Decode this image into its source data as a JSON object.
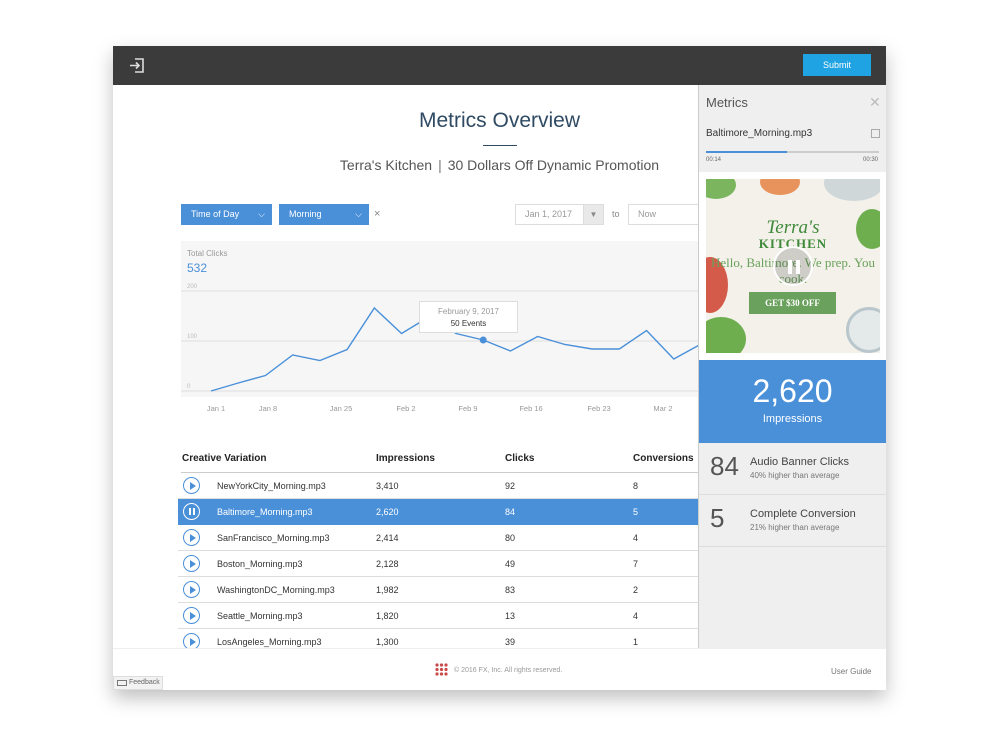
{
  "header": {
    "submit_label": "Submit"
  },
  "main": {
    "title": "Metrics Overview",
    "subtitle_brand": "Terra's Kitchen",
    "subtitle_sep": "|",
    "subtitle_campaign": "30 Dollars Off Dynamic Promotion"
  },
  "filters": {
    "dimension": "Time of Day",
    "value": "Morning",
    "clear": "×",
    "date_from": "Jan 1, 2017",
    "to_label": "to",
    "date_to_placeholder": "Now"
  },
  "chart_data": {
    "type": "line",
    "title": "Total Clicks",
    "total": "532",
    "x_ticks": [
      "Jan 1",
      "Jan 8",
      "Jan 25",
      "Feb 2",
      "Feb 9",
      "Feb 16",
      "Feb 23",
      "Mar 2"
    ],
    "y_ticks": [
      "0",
      "100",
      "200"
    ],
    "ylim": [
      0,
      200
    ],
    "series": [
      {
        "values": [
          0,
          16,
          31,
          72,
          61,
          83,
          166,
          115,
          148,
          115,
          102,
          80,
          109,
          93,
          84,
          84,
          121,
          64,
          94
        ]
      }
    ],
    "tooltip": {
      "date": "February 9, 2017",
      "events": "50 Events"
    },
    "color": "#4a90d9"
  },
  "table": {
    "headers": [
      "Creative Variation",
      "Impressions",
      "Clicks",
      "Conversions"
    ],
    "rows": [
      {
        "name": "NewYorkCity_Morning.mp3",
        "impressions": "3,410",
        "clicks": "92",
        "conversions": "8"
      },
      {
        "name": "Baltimore_Morning.mp3",
        "impressions": "2,620",
        "clicks": "84",
        "conversions": "5"
      },
      {
        "name": "SanFrancisco_Morning.mp3",
        "impressions": "2,414",
        "clicks": "80",
        "conversions": "4"
      },
      {
        "name": "Boston_Morning.mp3",
        "impressions": "2,128",
        "clicks": "49",
        "conversions": "7"
      },
      {
        "name": "WashingtonDC_Morning.mp3",
        "impressions": "1,982",
        "clicks": "83",
        "conversions": "2"
      },
      {
        "name": "Seattle_Morning.mp3",
        "impressions": "1,820",
        "clicks": "13",
        "conversions": "4"
      },
      {
        "name": "LosAngeles_Morning.mp3",
        "impressions": "1,300",
        "clicks": "39",
        "conversions": "1"
      }
    ]
  },
  "panel": {
    "title": "Metrics",
    "file": "Baltimore_Morning.mp3",
    "time_current": "00:14",
    "time_total": "00:30",
    "progress": 0.47,
    "ad": {
      "brand_line1": "Terra's",
      "brand_line2": "KITCHEN",
      "tagline": "Hello, Baltimore. We prep. You cook.",
      "cta": "GET $30 OFF"
    },
    "impressions_value": "2,620",
    "impressions_label": "Impressions",
    "stats": [
      {
        "value": "84",
        "label": "Audio Banner Clicks",
        "sub": "40% higher than average"
      },
      {
        "value": "5",
        "label": "Complete Conversion",
        "sub": "21% higher than average"
      }
    ]
  },
  "footer": {
    "copyright": "© 2016 FX, Inc. All rights reserved.",
    "user_guide": "User Guide",
    "feedback": "Feedback"
  }
}
